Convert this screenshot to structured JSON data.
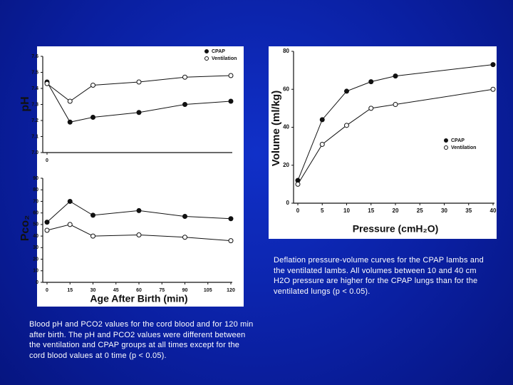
{
  "chart_data": [
    {
      "type": "line",
      "y_label": "pH",
      "xlim": [
        0,
        120
      ],
      "xticks": [
        0
      ],
      "ylim": [
        7.0,
        7.6
      ],
      "yticks": [
        {
          "value": 7,
          "label": "7.0"
        },
        7.1,
        7.2,
        7.3,
        7.4,
        7.5,
        7.6
      ],
      "x": [
        0,
        15,
        30,
        60,
        90,
        120
      ],
      "series": [
        {
          "name": "CPAP",
          "color": "#111111",
          "marker": "filled",
          "values": [
            7.44,
            7.19,
            7.22,
            7.25,
            7.3,
            7.32
          ]
        },
        {
          "name": "Ventilation",
          "color": "#111111",
          "marker": "open",
          "values": [
            7.43,
            7.32,
            7.42,
            7.44,
            7.47,
            7.48
          ]
        }
      ]
    },
    {
      "type": "line",
      "y_label": "Pco₂",
      "x_label": "Age After Birth (min)",
      "xlim": [
        0,
        120
      ],
      "xticks": [
        0,
        15,
        30,
        45,
        60,
        75,
        90,
        105,
        120
      ],
      "ylim": [
        0,
        90
      ],
      "yticks": [
        0,
        10,
        20,
        30,
        40,
        50,
        60,
        70,
        80,
        90
      ],
      "x": [
        0,
        15,
        30,
        60,
        90,
        120
      ],
      "series": [
        {
          "color": "#111111",
          "marker": "filled",
          "values": [
            52,
            70,
            58,
            62,
            57,
            55
          ]
        },
        {
          "color": "#111111",
          "marker": "open",
          "values": [
            45,
            50,
            40,
            41,
            39,
            36
          ]
        }
      ]
    },
    {
      "type": "line",
      "y_label": "Volume (ml/kg)",
      "x_label": "Pressure (cmH₂O)",
      "xlim": [
        0,
        40
      ],
      "xticks": [
        0,
        5,
        10,
        15,
        20,
        25,
        30,
        35,
        40
      ],
      "ylim": [
        0,
        80
      ],
      "yticks": [
        0,
        20,
        40,
        60,
        80
      ],
      "x": [
        0,
        5,
        10,
        15,
        20,
        40
      ],
      "series": [
        {
          "name": "CPAP",
          "color": "#111111",
          "marker": "filled",
          "values": [
            12,
            44,
            59,
            64,
            67,
            73
          ]
        },
        {
          "name": "Ventilation",
          "color": "#111111",
          "marker": "open",
          "values": [
            10,
            31,
            41,
            50,
            52,
            60
          ]
        }
      ]
    }
  ],
  "captions": [
    "Blood pH and PCO2 values for the cord blood and for 120  min after birth. The pH and PCO2 values were different  between the ventilation and CPAP groups at all times except for the cord blood values at 0 time (p < 0.05).",
    "Deflation pressure-volume curves for the CPAP lambs and the ventilated lambs. All volumes between 10 and 40 cm H2O pressure are higher for the CPAP lungs than for the ventilated lungs (p < 0.05)."
  ]
}
